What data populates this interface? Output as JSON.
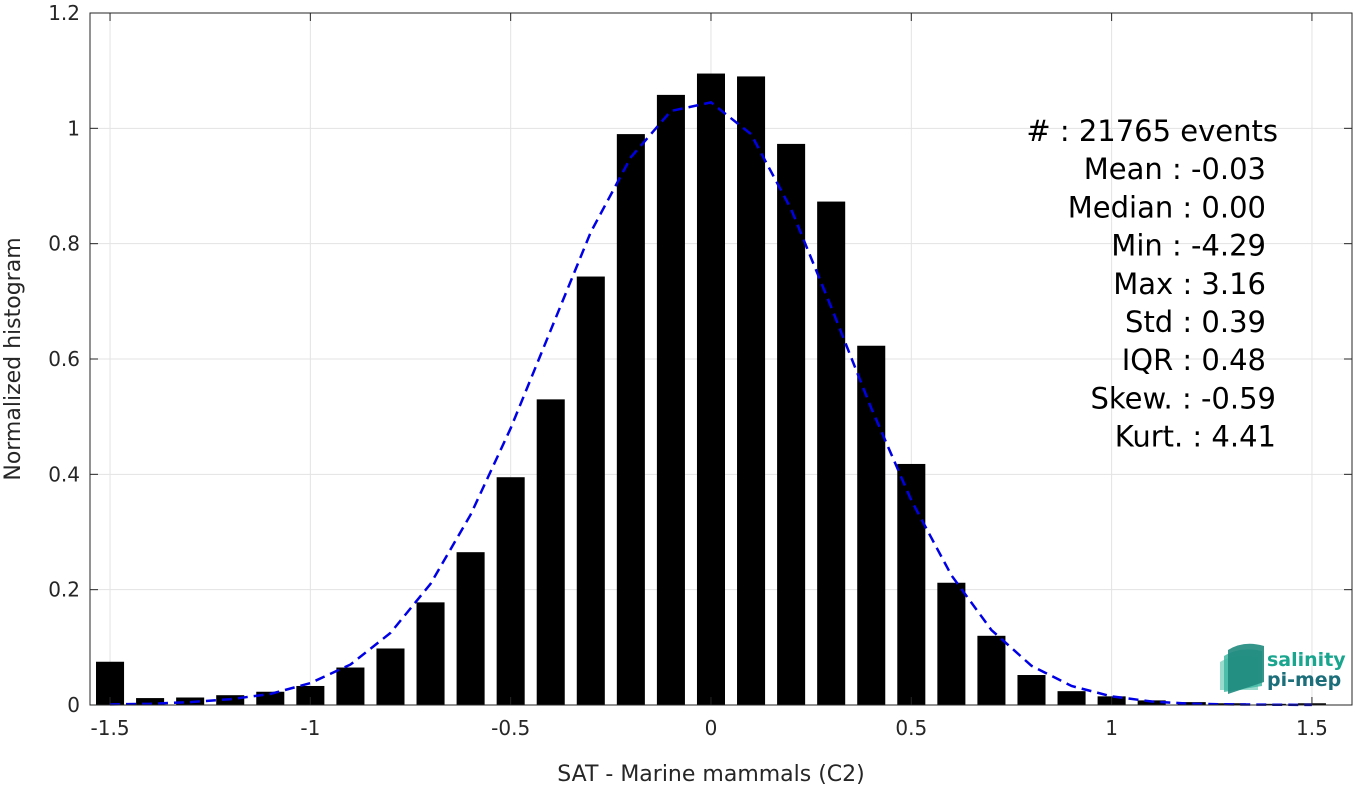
{
  "chart_data": {
    "type": "bar",
    "xlabel": "SAT - Marine mammals (C2)",
    "ylabel": "Normalized histogram",
    "xlim": [
      -1.55,
      1.6
    ],
    "ylim": [
      0,
      1.2
    ],
    "xticks": [
      -1.5,
      -1,
      -0.5,
      0,
      0.5,
      1,
      1.5
    ],
    "xtick_labels": [
      "-1.5",
      "-1",
      "-0.5",
      "0",
      "0.5",
      "1",
      "1.5"
    ],
    "yticks": [
      0,
      0.2,
      0.4,
      0.6,
      0.8,
      1,
      1.2
    ],
    "ytick_labels": [
      "0",
      "0.2",
      "0.4",
      "0.6",
      "0.8",
      "1",
      "1.2"
    ],
    "grid": true,
    "bar_width": 0.07,
    "bins": {
      "x": [
        -1.5,
        -1.4,
        -1.3,
        -1.2,
        -1.1,
        -1.0,
        -0.9,
        -0.8,
        -0.7,
        -0.6,
        -0.5,
        -0.4,
        -0.3,
        -0.2,
        -0.1,
        0.0,
        0.1,
        0.2,
        0.3,
        0.4,
        0.5,
        0.6,
        0.7,
        0.8,
        0.9,
        1.0,
        1.1,
        1.2,
        1.3,
        1.4,
        1.5
      ],
      "values": [
        0.075,
        0.012,
        0.013,
        0.017,
        0.023,
        0.033,
        0.065,
        0.098,
        0.178,
        0.265,
        0.395,
        0.53,
        0.743,
        0.99,
        1.058,
        1.095,
        1.09,
        0.973,
        0.873,
        0.623,
        0.418,
        0.212,
        0.12,
        0.052,
        0.024,
        0.015,
        0.008,
        0.005,
        0.003,
        0.002,
        0.003
      ],
      "color": "#000000"
    },
    "fit": {
      "style": "dashed",
      "color": "#0000e6",
      "x": [
        -1.5,
        -1.4,
        -1.3,
        -1.2,
        -1.1,
        -1.0,
        -0.9,
        -0.8,
        -0.7,
        -0.6,
        -0.5,
        -0.4,
        -0.3,
        -0.2,
        -0.1,
        0.0,
        0.1,
        0.2,
        0.3,
        0.4,
        0.5,
        0.6,
        0.7,
        0.8,
        0.9,
        1.0,
        1.1,
        1.2,
        1.3,
        1.4,
        1.5
      ],
      "values": [
        0.001,
        0.002,
        0.005,
        0.01,
        0.019,
        0.038,
        0.07,
        0.125,
        0.21,
        0.33,
        0.48,
        0.65,
        0.82,
        0.95,
        1.03,
        1.045,
        0.99,
        0.86,
        0.69,
        0.515,
        0.355,
        0.225,
        0.13,
        0.068,
        0.033,
        0.015,
        0.006,
        0.002,
        0.001,
        0.0005,
        0.0002
      ]
    },
    "stats": [
      "#  : 21765 events",
      "Mean : -0.03",
      "Median : 0.00",
      "Min : -4.29",
      "Max : 3.16",
      "Std : 0.39",
      "IQR : 0.48",
      "Skew. : -0.59",
      "Kurt. : 4.41"
    ],
    "stats_placement": "top-right"
  },
  "logo": {
    "line1": "salinity",
    "line2": "pi-mep",
    "color1": "#1aa58f",
    "color2": "#1c6f7a"
  }
}
